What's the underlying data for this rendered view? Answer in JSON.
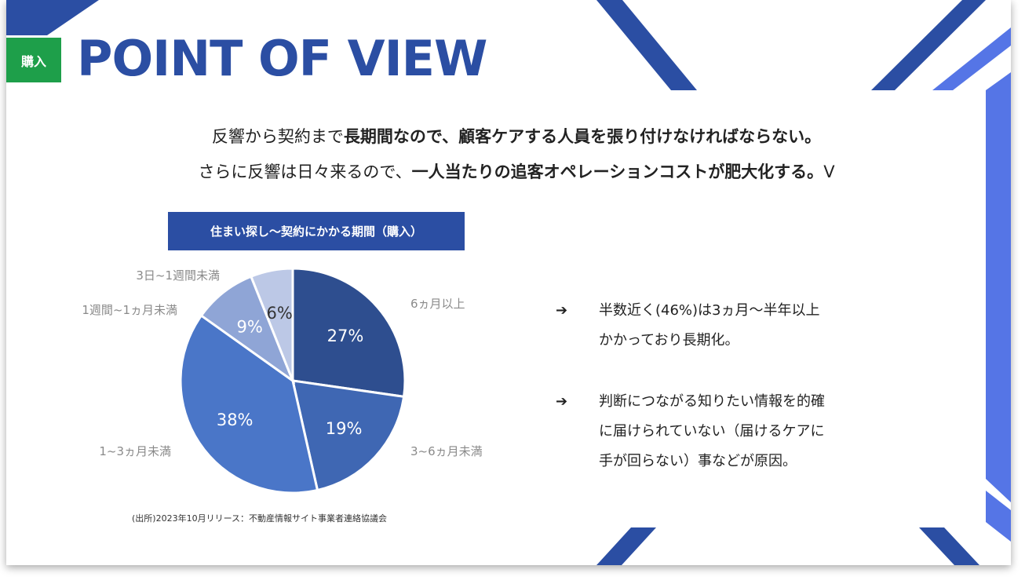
{
  "header": {
    "badge": "購入",
    "title": "POINT OF VIEW"
  },
  "lead": {
    "line1_normal": "反響から契約まで",
    "line1_bold": "長期間なので、顧客ケアする人員を張り付けなければならない。",
    "line2_normal": "さらに反響は日々来るので、",
    "line2_bold": "一人当たりの追客オペレーションコストが肥大化する。",
    "line2_tail": "V"
  },
  "chart_data": {
    "type": "pie",
    "title": "住まい探し～契約にかかる期間（購入）",
    "categories": [
      "6ヵ月以上",
      "3~6ヵ月未満",
      "1~3ヵ月未満",
      "1週間~1ヵ月未満",
      "3日~1週間未満"
    ],
    "values": [
      27,
      19,
      38,
      9,
      6
    ],
    "value_labels": [
      "27%",
      "19%",
      "38%",
      "9%",
      "6%"
    ],
    "colors": [
      "#2e4e8f",
      "#3f67b3",
      "#4a76c8",
      "#8fa5d6",
      "#bcc8e6"
    ],
    "label_colors": [
      "#ffffff",
      "#ffffff",
      "#ffffff",
      "#ffffff",
      "#333333"
    ],
    "source": "(出所)2023年10月リリース：不動産情報サイト事業者連絡協議会"
  },
  "bullets": [
    {
      "arrow": "➔",
      "lines": [
        "半数近く(46%)は3ヵ月〜半年以上",
        "かかっており長期化。"
      ]
    },
    {
      "arrow": "➔",
      "lines": [
        "判断につながる知りたい情報を的確",
        "に届けられていない（届けるケアに",
        "手が回らない）事などが原因。"
      ]
    }
  ]
}
